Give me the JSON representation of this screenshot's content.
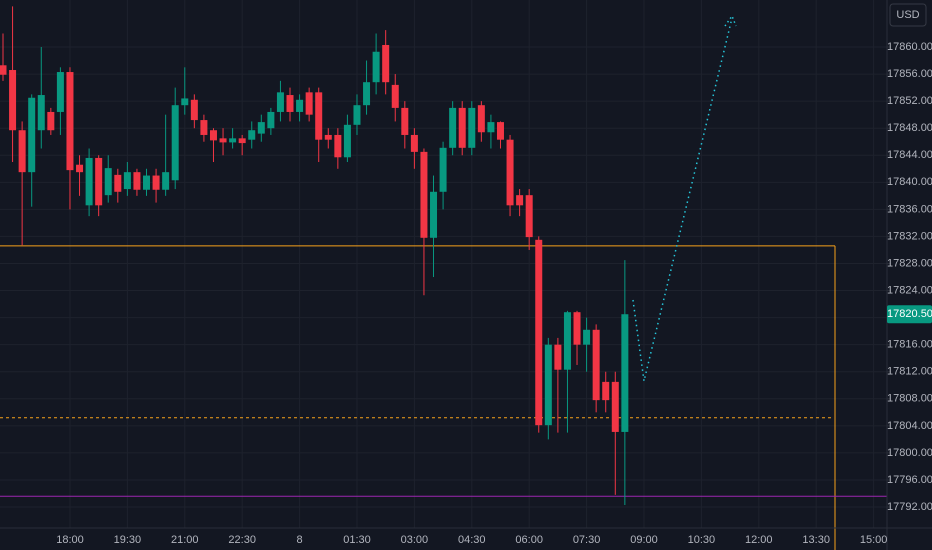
{
  "chart_data": {
    "type": "candlestick",
    "currency": "USD",
    "up_color": "#089981",
    "down_color": "#f23645",
    "grid": true,
    "ylim": [
      17788.9,
      17866.95
    ],
    "yticks": [
      {
        "value": 17792,
        "label": "17792.00"
      },
      {
        "value": 17796,
        "label": "17796.00"
      },
      {
        "value": 17800,
        "label": "17800.00"
      },
      {
        "value": 17804,
        "label": "17804.00"
      },
      {
        "value": 17808,
        "label": "17808.00"
      },
      {
        "value": 17812,
        "label": "17812.00"
      },
      {
        "value": 17816,
        "label": "17816.00"
      },
      {
        "value": 17820,
        "label": "17820.00"
      },
      {
        "value": 17824,
        "label": "17824.00"
      },
      {
        "value": 17828,
        "label": "17828.00"
      },
      {
        "value": 17832,
        "label": "17832.00"
      },
      {
        "value": 17836,
        "label": "17836.00"
      },
      {
        "value": 17840,
        "label": "17840.00"
      },
      {
        "value": 17844,
        "label": "17844.00"
      },
      {
        "value": 17848,
        "label": "17848.00"
      },
      {
        "value": 17852,
        "label": "17852.00"
      },
      {
        "value": 17856,
        "label": "17856.00"
      },
      {
        "value": 17860,
        "label": "17860.00"
      }
    ],
    "last_price": {
      "value": 17820.5,
      "label": "17820.50"
    },
    "levels": [
      {
        "value": 17830.6,
        "color": "#f7a21b",
        "style": "solid"
      },
      {
        "value": 17805.2,
        "color": "#f7a21b",
        "style": "dashed"
      },
      {
        "value": 17793.6,
        "color": "#9c27b0",
        "style": "solid"
      }
    ],
    "categories": [
      null,
      null,
      null,
      null,
      null,
      null,
      null,
      "18:00",
      null,
      null,
      null,
      null,
      null,
      "19:30",
      null,
      null,
      null,
      null,
      null,
      "21:00",
      null,
      null,
      null,
      null,
      null,
      "22:30",
      null,
      null,
      null,
      null,
      null,
      "8",
      null,
      null,
      null,
      null,
      null,
      "01:30",
      null,
      null,
      null,
      null,
      null,
      "03:00",
      null,
      null,
      null,
      null,
      null,
      "04:30",
      null,
      null,
      null,
      null,
      null,
      "06:00",
      null,
      null,
      null,
      null,
      null,
      "07:30",
      null,
      null,
      null,
      null,
      null,
      "09:00",
      null,
      null,
      null,
      null,
      null,
      "10:30",
      null,
      null,
      null,
      null,
      null,
      "12:00",
      null,
      null,
      null,
      null,
      null,
      "13:30",
      null,
      null,
      null,
      null,
      null,
      "15:00"
    ],
    "open": [
      17857.3,
      17856.6,
      17847.7,
      17841.5,
      17847.7,
      17850.4,
      17850.4,
      17856.3,
      17842.6,
      17836.6,
      17843.6,
      17838.1,
      17841.1,
      17839.0,
      17841.5,
      17838.9,
      17841.0,
      17838.9,
      17840.3,
      17851.4,
      17852.2,
      17849.2,
      17847.7,
      17846.5,
      17845.9,
      17846.5,
      17846.3,
      17847.2,
      17848.0,
      17850.4,
      17852.9,
      17850.4,
      17853.3,
      17853.3,
      17847.0,
      17847.0,
      17843.7,
      17848.5,
      17851.4,
      17854.8,
      17860.3,
      17854.4,
      17851.0,
      17847.0,
      17844.5,
      17831.8,
      17838.6,
      17845.1,
      17851.0,
      17845.1,
      17851.4,
      17847.4,
      17848.9,
      17846.3,
      17838.1,
      17838.1,
      17831.5,
      17804.1,
      17816.0,
      17812.3,
      17820.8,
      17816.0,
      17818.2,
      17810.5,
      17810.5,
      17803.1,
      null,
      null,
      null,
      null,
      null,
      null,
      null,
      null,
      null,
      null,
      null,
      null,
      null,
      null,
      null,
      null,
      null,
      null,
      null,
      null,
      null,
      null,
      null,
      null,
      null,
      null
    ],
    "high": [
      17862,
      17866,
      17849,
      17853,
      17860,
      17851,
      17857,
      17857,
      17844,
      17845,
      17844,
      17844,
      17842,
      17843,
      17842,
      17842,
      17842,
      17850,
      17854,
      17857,
      17853,
      17850,
      17848,
      17848,
      17848,
      17847,
      17849,
      17850,
      17851,
      17855,
      17854,
      17853,
      17854,
      17854,
      17848,
      17848,
      17850,
      17853,
      17858,
      17862,
      17862.5,
      17856,
      17852,
      17848,
      17845,
      17841,
      17846,
      17852,
      17852,
      17852,
      17852,
      17850,
      17849,
      17847,
      17839,
      17839,
      17832,
      17817,
      17817,
      17821,
      17821,
      17820,
      17819,
      17812,
      17812,
      17828.5,
      null,
      null,
      null,
      null,
      null,
      null,
      null,
      null,
      null,
      null,
      null,
      null,
      null,
      null,
      null,
      null,
      null,
      null,
      null,
      null,
      null,
      null,
      null,
      null,
      null,
      null
    ],
    "low": [
      17855,
      17843,
      17830.7,
      17836.4,
      17845,
      17847,
      17847,
      17836,
      17838,
      17835,
      17835,
      17837,
      17837,
      17838,
      17838,
      17838,
      17837,
      17838,
      17839,
      17850,
      17848,
      17846,
      17843,
      17844,
      17845,
      17844,
      17845,
      17846,
      17847,
      17849,
      17849,
      17849,
      17849,
      17843,
      17845,
      17842,
      17843,
      17847,
      17850,
      17853,
      17853,
      17849,
      17845,
      17842,
      17823.3,
      17826,
      17836,
      17844,
      17844,
      17844,
      17846,
      17845,
      17845,
      17835,
      17835,
      17830,
      17803,
      17802,
      17803,
      17803,
      17813,
      17812,
      17806,
      17806,
      17793.8,
      17792.3,
      null,
      null,
      null,
      null,
      null,
      null,
      null,
      null,
      null,
      null,
      null,
      null,
      null,
      null,
      null,
      null,
      null,
      null,
      null,
      null,
      null,
      null,
      null,
      null,
      null,
      null
    ],
    "close": [
      17855.9,
      17847.7,
      17841.5,
      17852.5,
      17852.9,
      17847.7,
      17856.3,
      17841.8,
      17841.5,
      17843.6,
      17836.6,
      17842.1,
      17838.6,
      17841.5,
      17838.9,
      17841.0,
      17838.9,
      17841.5,
      17851.4,
      17852.4,
      17849.2,
      17847.0,
      17846.2,
      17845.9,
      17846.5,
      17845.8,
      17847.7,
      17848.9,
      17850.4,
      17853.3,
      17850.4,
      17852.2,
      17850.0,
      17846.3,
      17846.3,
      17843.7,
      17848.5,
      17851.4,
      17854.8,
      17859.3,
      17854.8,
      17851.0,
      17847.0,
      17844.5,
      17831.8,
      17838.6,
      17845.1,
      17851.0,
      17845.1,
      17851.0,
      17847.4,
      17848.9,
      17846.3,
      17836.6,
      17836.6,
      17831.9,
      17804.1,
      17816.0,
      17812.3,
      17820.8,
      17816.0,
      17818.2,
      17807.8,
      17807.8,
      17803.1,
      17820.5,
      null,
      null,
      null,
      null,
      null,
      null,
      null,
      null,
      null,
      null,
      null,
      null,
      null,
      null,
      null,
      null,
      null,
      null,
      null,
      null,
      null,
      null,
      null,
      null,
      null,
      null
    ]
  }
}
